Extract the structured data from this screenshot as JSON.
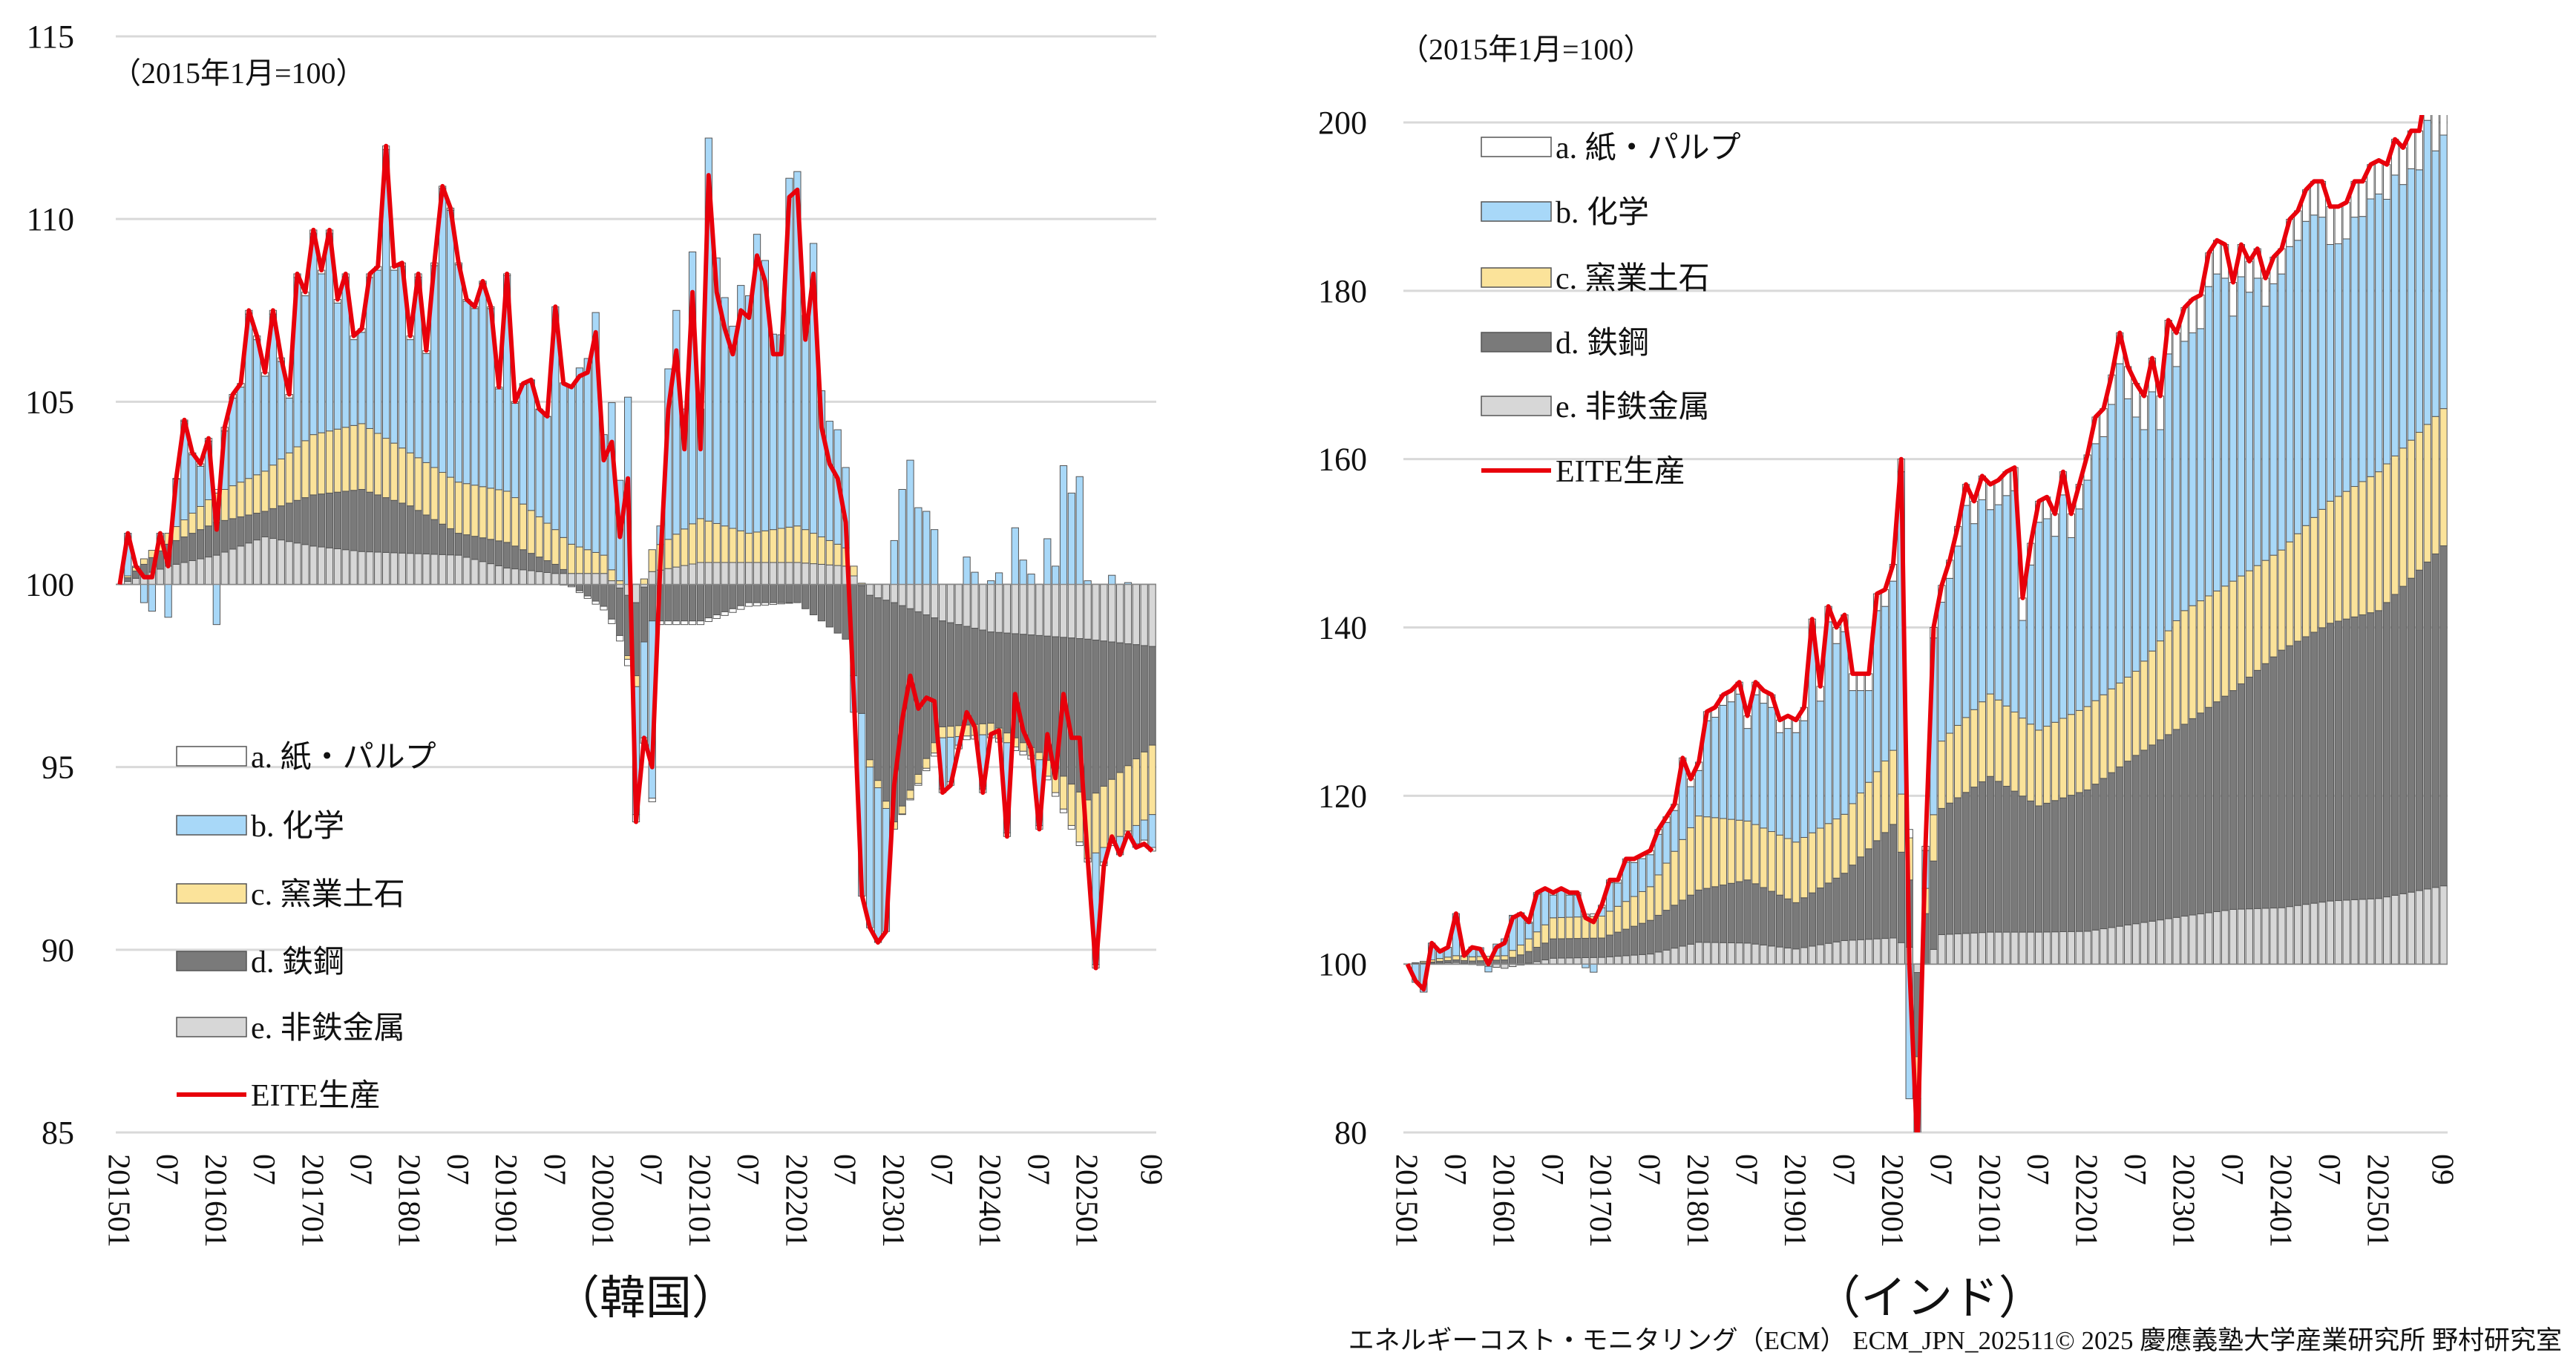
{
  "footer": "エネルギーコスト・モニタリング（ECM） ECM_JPN_202511© 2025 慶應義塾大学産業研究所 野村研究室",
  "colors": {
    "a": "#ffffff",
    "b": "#a8d8f8",
    "c": "#fbe39a",
    "d": "#7a7a7a",
    "e": "#d7d7d7",
    "line": "#e8000b",
    "grid": "#d9d9d9"
  },
  "chart_data": [
    {
      "type": "bar",
      "stacked": true,
      "caption": "（韓国）",
      "unit_label": "（2015年1月=100）",
      "start": "2015-01",
      "ylim": [
        85,
        115
      ],
      "ytick_step": 5,
      "yticks": [
        "85",
        "90",
        "95",
        "100",
        "105",
        "110",
        "115"
      ],
      "xtick_labels": [
        {
          "m": "2015-01",
          "t": "201501"
        },
        {
          "m": "2015-07",
          "t": "07"
        },
        {
          "m": "2016-01",
          "t": "201601"
        },
        {
          "m": "2016-07",
          "t": "07"
        },
        {
          "m": "2017-01",
          "t": "201701"
        },
        {
          "m": "2017-07",
          "t": "07"
        },
        {
          "m": "2018-01",
          "t": "201801"
        },
        {
          "m": "2018-07",
          "t": "07"
        },
        {
          "m": "2019-01",
          "t": "201901"
        },
        {
          "m": "2019-07",
          "t": "07"
        },
        {
          "m": "2020-01",
          "t": "202001"
        },
        {
          "m": "2020-07",
          "t": "07"
        },
        {
          "m": "2021-01",
          "t": "202101"
        },
        {
          "m": "2021-07",
          "t": "07"
        },
        {
          "m": "2022-01",
          "t": "202201"
        },
        {
          "m": "2022-07",
          "t": "07"
        },
        {
          "m": "2023-01",
          "t": "202301"
        },
        {
          "m": "2023-07",
          "t": "07"
        },
        {
          "m": "2024-01",
          "t": "202401"
        },
        {
          "m": "2024-07",
          "t": "07"
        },
        {
          "m": "2025-01",
          "t": "202501"
        },
        {
          "m": "2025-09",
          "t": "09"
        }
      ],
      "legend": [
        {
          "key": "a",
          "label": "a. 紙・パルプ"
        },
        {
          "key": "b",
          "label": "b. 化学"
        },
        {
          "key": "c",
          "label": "c. 窯業土石"
        },
        {
          "key": "d",
          "label": "d. 鉄鋼"
        },
        {
          "key": "e",
          "label": "e. 非鉄金属"
        },
        {
          "key": "line",
          "label": "EITE生産"
        }
      ],
      "eite": [
        100.0,
        101.4,
        100.5,
        100.2,
        100.2,
        101.4,
        100.5,
        102.9,
        104.5,
        103.6,
        103.3,
        104.0,
        101.5,
        104.3,
        105.2,
        105.5,
        107.5,
        106.8,
        105.8,
        107.5,
        106.2,
        105.2,
        108.5,
        108.0,
        109.7,
        108.6,
        109.7,
        107.8,
        108.5,
        106.8,
        107.0,
        108.5,
        108.7,
        112.0,
        108.7,
        108.8,
        106.8,
        108.5,
        106.4,
        108.8,
        110.9,
        110.3,
        108.8,
        107.8,
        107.6,
        108.3,
        107.6,
        105.4,
        108.5,
        105.0,
        105.5,
        105.6,
        104.8,
        104.6,
        107.6,
        105.5,
        105.4,
        105.7,
        105.8,
        106.9,
        103.4,
        103.9,
        101.3,
        102.9,
        93.5,
        95.8,
        95.0,
        100.5,
        104.8,
        106.4,
        103.7,
        108.0,
        103.7,
        111.2,
        108.0,
        107.0,
        106.3,
        107.5,
        107.3,
        109.0,
        108.3,
        106.3,
        106.3,
        110.6,
        110.8,
        106.7,
        108.5,
        104.3,
        103.3,
        102.9,
        101.7,
        97.0,
        91.5,
        90.6,
        90.2,
        90.5,
        94.5,
        96.3,
        97.5,
        96.6,
        96.9,
        96.8,
        94.3,
        94.5,
        95.5,
        96.5,
        96.1,
        94.3,
        95.9,
        96.0,
        93.1,
        97.0,
        96.0,
        95.5,
        93.3,
        95.9,
        94.7,
        97.0,
        95.8,
        95.8,
        92.5,
        89.5,
        92.3,
        93.1,
        92.6,
        93.2,
        92.8,
        92.9,
        92.7
      ],
      "components_note": "b. 化学 = EITE − 100 − (a + c + d + e)",
      "component_anchors": [
        {
          "m": "2015-01",
          "a": 0,
          "c": 0,
          "d": 0,
          "e": 0
        },
        {
          "m": "2015-07",
          "a": 0,
          "c": 0.3,
          "d": 0.6,
          "e": 0.5
        },
        {
          "m": "2016-01",
          "a": 0.1,
          "c": 0.8,
          "d": 0.9,
          "e": 0.8
        },
        {
          "m": "2016-07",
          "a": 0.1,
          "c": 1.1,
          "d": 0.7,
          "e": 1.3
        },
        {
          "m": "2017-01",
          "a": 0.1,
          "c": 1.65,
          "d": 1.4,
          "e": 1.05
        },
        {
          "m": "2017-07",
          "a": 0.1,
          "c": 1.8,
          "d": 1.7,
          "e": 0.9
        },
        {
          "m": "2018-01",
          "a": 0.1,
          "c": 1.45,
          "d": 1.3,
          "e": 0.85
        },
        {
          "m": "2018-07",
          "a": 0.05,
          "c": 1.4,
          "d": 0.6,
          "e": 0.8
        },
        {
          "m": "2019-01",
          "a": 0.05,
          "c": 1.4,
          "d": 0.7,
          "e": 0.45
        },
        {
          "m": "2019-07",
          "a": 0,
          "c": 0.95,
          "d": 0.25,
          "e": 0.3
        },
        {
          "m": "2020-01",
          "a": -0.1,
          "c": 0.5,
          "d": -0.6,
          "e": 0.3
        },
        {
          "m": "2020-05",
          "a": -0.2,
          "c": -0.3,
          "d": -2.0,
          "e": -0.5
        },
        {
          "m": "2020-07",
          "a": -0.1,
          "c": 0.6,
          "d": -1.0,
          "e": 0.35
        },
        {
          "m": "2021-01",
          "a": -0.1,
          "c": 1.2,
          "d": -1.0,
          "e": 0.6
        },
        {
          "m": "2021-07",
          "a": -0.1,
          "c": 0.8,
          "d": -0.5,
          "e": 0.6
        },
        {
          "m": "2022-01",
          "a": 0,
          "c": 1.0,
          "d": -0.5,
          "e": 0.6
        },
        {
          "m": "2022-07",
          "a": 0,
          "c": 0.5,
          "d": -1.5,
          "e": 0.5
        },
        {
          "m": "2022-10",
          "a": 0,
          "c": -0.2,
          "d": -4.5,
          "e": -0.3
        },
        {
          "m": "2023-01",
          "a": 0,
          "c": -0.2,
          "d": -6.0,
          "e": -0.5
        },
        {
          "m": "2023-07",
          "a": -0.1,
          "c": -0.3,
          "d": -2.9,
          "e": -1.0
        },
        {
          "m": "2024-01",
          "a": -0.1,
          "c": -0.3,
          "d": -2.5,
          "e": -1.3
        },
        {
          "m": "2024-07",
          "a": -0.1,
          "c": -0.2,
          "d": -3.2,
          "e": -1.4
        },
        {
          "m": "2025-01",
          "a": -0.1,
          "c": -1.6,
          "d": -4.4,
          "e": -1.5
        },
        {
          "m": "2025-09",
          "a": -0.1,
          "c": -1.9,
          "d": -2.7,
          "e": -1.7
        }
      ]
    },
    {
      "type": "bar",
      "stacked": true,
      "caption": "（インド）",
      "unit_label": "（2015年1月=100）",
      "start": "2015-01",
      "ylim": [
        80,
        200
      ],
      "ytick_step": 20,
      "yticks": [
        "80",
        "100",
        "120",
        "140",
        "160",
        "180",
        "200"
      ],
      "xtick_labels": [
        {
          "m": "2015-01",
          "t": "201501"
        },
        {
          "m": "2015-07",
          "t": "07"
        },
        {
          "m": "2016-01",
          "t": "201601"
        },
        {
          "m": "2016-07",
          "t": "07"
        },
        {
          "m": "2017-01",
          "t": "201701"
        },
        {
          "m": "2017-07",
          "t": "07"
        },
        {
          "m": "2018-01",
          "t": "201801"
        },
        {
          "m": "2018-07",
          "t": "07"
        },
        {
          "m": "2019-01",
          "t": "201901"
        },
        {
          "m": "2019-07",
          "t": "07"
        },
        {
          "m": "2020-01",
          "t": "202001"
        },
        {
          "m": "2020-07",
          "t": "07"
        },
        {
          "m": "2021-01",
          "t": "202101"
        },
        {
          "m": "2021-07",
          "t": "07"
        },
        {
          "m": "2022-01",
          "t": "202201"
        },
        {
          "m": "2022-07",
          "t": "07"
        },
        {
          "m": "2023-01",
          "t": "202301"
        },
        {
          "m": "2023-07",
          "t": "07"
        },
        {
          "m": "2024-01",
          "t": "202401"
        },
        {
          "m": "2024-07",
          "t": "07"
        },
        {
          "m": "2025-01",
          "t": "202501"
        },
        {
          "m": "2025-09",
          "t": "09"
        }
      ],
      "legend": [
        {
          "key": "a",
          "label": "a. 紙・パルプ"
        },
        {
          "key": "b",
          "label": "b. 化学"
        },
        {
          "key": "c",
          "label": "c. 窯業土石"
        },
        {
          "key": "d",
          "label": "d. 鉄鋼"
        },
        {
          "key": "e",
          "label": "e. 非鉄金属"
        },
        {
          "key": "line",
          "label": "EITE生産"
        }
      ],
      "eite": [
        100,
        98,
        97,
        102.5,
        101.5,
        102,
        106,
        101,
        102,
        101.8,
        100,
        102,
        102.5,
        105.5,
        106,
        105,
        108.5,
        109,
        108.5,
        109,
        108.5,
        108.5,
        105.5,
        105,
        107,
        110,
        110,
        112.5,
        112.5,
        113,
        113.5,
        116,
        117.5,
        119,
        124.5,
        122,
        124,
        130,
        130.5,
        132,
        132.5,
        133.5,
        129.5,
        133.5,
        132.5,
        132,
        129,
        129.5,
        129,
        130.5,
        141,
        133,
        142.5,
        140,
        141.5,
        134.5,
        134.5,
        134.5,
        144,
        144.5,
        147.5,
        160,
        100,
        78,
        114,
        140,
        145,
        148,
        152,
        157,
        155,
        158,
        157,
        157.5,
        158.5,
        159,
        143.5,
        150,
        155,
        155.5,
        153.5,
        158.5,
        153.5,
        157,
        160.5,
        165,
        166,
        170,
        175,
        171,
        169,
        167.5,
        172,
        167.5,
        176.5,
        175,
        178,
        179,
        179.5,
        184.5,
        186,
        185.5,
        181,
        185.5,
        183.5,
        185,
        181.5,
        184,
        185,
        188.5,
        189.5,
        192,
        193,
        193,
        190,
        190,
        190.5,
        193,
        193,
        195,
        195.5,
        195,
        198,
        197,
        199,
        199,
        205,
        201.5,
        203.5
      ],
      "components_note": "b. 化学 = EITE − 100 − (a + c + d + e)",
      "component_anchors": [
        {
          "m": "2015-01",
          "a": 0,
          "c": 0,
          "d": 0,
          "e": 0
        },
        {
          "m": "2015-07",
          "a": 0,
          "c": 0.5,
          "d": 0.3,
          "e": 0.2
        },
        {
          "m": "2016-01",
          "a": 0,
          "c": 0.5,
          "d": 0.5,
          "e": -0.5
        },
        {
          "m": "2016-07",
          "a": 0.3,
          "c": 2.5,
          "d": 2.3,
          "e": 0.7
        },
        {
          "m": "2017-01",
          "a": 0.3,
          "c": 2.6,
          "d": 2.3,
          "e": 0.8
        },
        {
          "m": "2017-07",
          "a": 0.5,
          "c": 4,
          "d": 4,
          "e": 1.2
        },
        {
          "m": "2018-01",
          "a": 1,
          "c": 8.8,
          "d": 6.2,
          "e": 2.6
        },
        {
          "m": "2018-07",
          "a": 1.5,
          "c": 7,
          "d": 7.5,
          "e": 2.5
        },
        {
          "m": "2019-01",
          "a": 1.5,
          "c": 7.2,
          "d": 5.5,
          "e": 1.8
        },
        {
          "m": "2019-07",
          "a": 2,
          "c": 7,
          "d": 8,
          "e": 2.8
        },
        {
          "m": "2020-01",
          "a": 2,
          "c": 8.8,
          "d": 13.5,
          "e": 3.1
        },
        {
          "m": "2020-03",
          "a": 1,
          "c": 5,
          "d": 8,
          "e": 2
        },
        {
          "m": "2020-04",
          "a": 0,
          "c": -5,
          "d": -10,
          "e": -1
        },
        {
          "m": "2020-05",
          "a": 0.5,
          "c": 3,
          "d": 6,
          "e": 0
        },
        {
          "m": "2020-07",
          "a": 2,
          "c": 8,
          "d": 15,
          "e": 3.5
        },
        {
          "m": "2021-01",
          "a": 3,
          "c": 9.8,
          "d": 18.5,
          "e": 3.8
        },
        {
          "m": "2021-07",
          "a": 2.5,
          "c": 9,
          "d": 15,
          "e": 3.8
        },
        {
          "m": "2022-01",
          "a": 3,
          "c": 9.9,
          "d": 16.8,
          "e": 3.9
        },
        {
          "m": "2022-07",
          "a": 4,
          "c": 10,
          "d": 20,
          "e": 4.8
        },
        {
          "m": "2023-01",
          "a": 4,
          "c": 13.5,
          "d": 22.8,
          "e": 5.7
        },
        {
          "m": "2023-07",
          "a": 4,
          "c": 13,
          "d": 26,
          "e": 6.5
        },
        {
          "m": "2024-01",
          "a": 3,
          "c": 11.9,
          "d": 30.6,
          "e": 6.7
        },
        {
          "m": "2024-07",
          "a": 4.5,
          "c": 14.5,
          "d": 33,
          "e": 7.5
        },
        {
          "m": "2025-01",
          "a": 4,
          "c": 16.5,
          "d": 34.2,
          "e": 7.8
        },
        {
          "m": "2025-09",
          "a": 5,
          "c": 16.3,
          "d": 40.4,
          "e": 9.3
        }
      ]
    }
  ]
}
